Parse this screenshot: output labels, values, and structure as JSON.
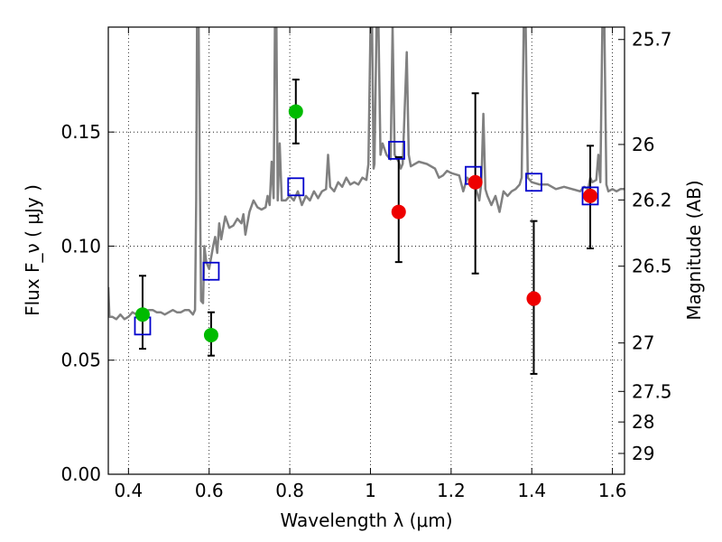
{
  "chart_data": {
    "type": "scatter",
    "xlabel": "Wavelength  λ (μm)",
    "ylabel": "Flux  F_ν  ( μJy )",
    "ylabel_right": "Magnitude (AB)",
    "xlim": [
      0.35,
      1.63
    ],
    "ylim": [
      0.0,
      0.196
    ],
    "grid": true,
    "x_ticks": [
      0.4,
      0.6,
      0.8,
      1.0,
      1.2,
      1.4,
      1.6
    ],
    "x_tick_labels": [
      "0.4",
      "0.6",
      "0.8",
      "1",
      "1.2",
      "1.4",
      "1.6"
    ],
    "y_ticks": [
      0.0,
      0.05,
      0.1,
      0.15
    ],
    "y_tick_labels": [
      "0.00",
      "0.05",
      "0.10",
      "0.15"
    ],
    "right_ticks": [
      {
        "label": "25.7",
        "mag": 25.7
      },
      {
        "label": "26",
        "mag": 26.0
      },
      {
        "label": "26.2",
        "mag": 26.2
      },
      {
        "label": "26.5",
        "mag": 26.5
      },
      {
        "label": "27",
        "mag": 27.0
      },
      {
        "label": "27.5",
        "mag": 27.5
      },
      {
        "label": "28",
        "mag": 28.0
      },
      {
        "label": "29",
        "mag": 29.0
      }
    ],
    "colors": {
      "spectrum": "#808080",
      "green": "#00bb00",
      "red": "#ee0000",
      "model_squares": "#0000cc",
      "errorbar": "#000000",
      "grid": "#000000"
    },
    "spectrum": [
      [
        0.35,
        0.082
      ],
      [
        0.353,
        0.069
      ],
      [
        0.36,
        0.069
      ],
      [
        0.37,
        0.068
      ],
      [
        0.38,
        0.07
      ],
      [
        0.39,
        0.068
      ],
      [
        0.4,
        0.069
      ],
      [
        0.41,
        0.071
      ],
      [
        0.42,
        0.07
      ],
      [
        0.43,
        0.072
      ],
      [
        0.44,
        0.071
      ],
      [
        0.45,
        0.072
      ],
      [
        0.46,
        0.072
      ],
      [
        0.47,
        0.071
      ],
      [
        0.48,
        0.071
      ],
      [
        0.49,
        0.07
      ],
      [
        0.5,
        0.071
      ],
      [
        0.51,
        0.072
      ],
      [
        0.52,
        0.071
      ],
      [
        0.53,
        0.071
      ],
      [
        0.54,
        0.072
      ],
      [
        0.55,
        0.072
      ],
      [
        0.56,
        0.07
      ],
      [
        0.565,
        0.072
      ],
      [
        0.568,
        0.12
      ],
      [
        0.57,
        0.196
      ],
      [
        0.574,
        0.196
      ],
      [
        0.577,
        0.13
      ],
      [
        0.58,
        0.076
      ],
      [
        0.585,
        0.075
      ],
      [
        0.588,
        0.1
      ],
      [
        0.593,
        0.093
      ],
      [
        0.6,
        0.09
      ],
      [
        0.61,
        0.1
      ],
      [
        0.615,
        0.104
      ],
      [
        0.62,
        0.097
      ],
      [
        0.625,
        0.11
      ],
      [
        0.63,
        0.103
      ],
      [
        0.64,
        0.113
      ],
      [
        0.65,
        0.108
      ],
      [
        0.66,
        0.109
      ],
      [
        0.67,
        0.112
      ],
      [
        0.68,
        0.11
      ],
      [
        0.685,
        0.114
      ],
      [
        0.69,
        0.105
      ],
      [
        0.7,
        0.115
      ],
      [
        0.71,
        0.12
      ],
      [
        0.72,
        0.117
      ],
      [
        0.73,
        0.116
      ],
      [
        0.74,
        0.117
      ],
      [
        0.745,
        0.122
      ],
      [
        0.75,
        0.118
      ],
      [
        0.755,
        0.137
      ],
      [
        0.76,
        0.121
      ],
      [
        0.763,
        0.196
      ],
      [
        0.767,
        0.196
      ],
      [
        0.77,
        0.12
      ],
      [
        0.775,
        0.145
      ],
      [
        0.78,
        0.12
      ],
      [
        0.79,
        0.12
      ],
      [
        0.8,
        0.122
      ],
      [
        0.81,
        0.12
      ],
      [
        0.82,
        0.124
      ],
      [
        0.83,
        0.118
      ],
      [
        0.84,
        0.122
      ],
      [
        0.85,
        0.12
      ],
      [
        0.86,
        0.124
      ],
      [
        0.87,
        0.121
      ],
      [
        0.88,
        0.124
      ],
      [
        0.89,
        0.125
      ],
      [
        0.895,
        0.14
      ],
      [
        0.9,
        0.126
      ],
      [
        0.91,
        0.124
      ],
      [
        0.92,
        0.128
      ],
      [
        0.93,
        0.126
      ],
      [
        0.94,
        0.13
      ],
      [
        0.95,
        0.127
      ],
      [
        0.96,
        0.128
      ],
      [
        0.97,
        0.127
      ],
      [
        0.98,
        0.13
      ],
      [
        0.99,
        0.129
      ],
      [
        0.995,
        0.136
      ],
      [
        1.0,
        0.196
      ],
      [
        1.004,
        0.196
      ],
      [
        1.008,
        0.134
      ],
      [
        1.01,
        0.136
      ],
      [
        1.015,
        0.196
      ],
      [
        1.02,
        0.196
      ],
      [
        1.025,
        0.14
      ],
      [
        1.03,
        0.145
      ],
      [
        1.04,
        0.14
      ],
      [
        1.05,
        0.138
      ],
      [
        1.055,
        0.196
      ],
      [
        1.06,
        0.14
      ],
      [
        1.07,
        0.137
      ],
      [
        1.075,
        0.134
      ],
      [
        1.08,
        0.136
      ],
      [
        1.09,
        0.185
      ],
      [
        1.095,
        0.14
      ],
      [
        1.1,
        0.135
      ],
      [
        1.12,
        0.137
      ],
      [
        1.14,
        0.136
      ],
      [
        1.16,
        0.134
      ],
      [
        1.17,
        0.13
      ],
      [
        1.18,
        0.131
      ],
      [
        1.19,
        0.133
      ],
      [
        1.2,
        0.132
      ],
      [
        1.22,
        0.131
      ],
      [
        1.23,
        0.124
      ],
      [
        1.24,
        0.13
      ],
      [
        1.25,
        0.128
      ],
      [
        1.26,
        0.126
      ],
      [
        1.27,
        0.12
      ],
      [
        1.275,
        0.128
      ],
      [
        1.28,
        0.158
      ],
      [
        1.285,
        0.125
      ],
      [
        1.29,
        0.122
      ],
      [
        1.3,
        0.118
      ],
      [
        1.31,
        0.122
      ],
      [
        1.32,
        0.115
      ],
      [
        1.33,
        0.124
      ],
      [
        1.34,
        0.122
      ],
      [
        1.35,
        0.124
      ],
      [
        1.36,
        0.125
      ],
      [
        1.37,
        0.127
      ],
      [
        1.375,
        0.13
      ],
      [
        1.38,
        0.196
      ],
      [
        1.385,
        0.196
      ],
      [
        1.39,
        0.13
      ],
      [
        1.4,
        0.128
      ],
      [
        1.42,
        0.127
      ],
      [
        1.44,
        0.127
      ],
      [
        1.46,
        0.125
      ],
      [
        1.48,
        0.126
      ],
      [
        1.5,
        0.125
      ],
      [
        1.52,
        0.124
      ],
      [
        1.53,
        0.126
      ],
      [
        1.54,
        0.125
      ],
      [
        1.545,
        0.13
      ],
      [
        1.55,
        0.128
      ],
      [
        1.56,
        0.129
      ],
      [
        1.565,
        0.14
      ],
      [
        1.57,
        0.128
      ],
      [
        1.575,
        0.196
      ],
      [
        1.58,
        0.196
      ],
      [
        1.585,
        0.127
      ],
      [
        1.59,
        0.124
      ],
      [
        1.6,
        0.125
      ],
      [
        1.61,
        0.124
      ],
      [
        1.62,
        0.125
      ],
      [
        1.63,
        0.125
      ]
    ],
    "model_points": [
      {
        "x": 0.435,
        "y": 0.065
      },
      {
        "x": 0.605,
        "y": 0.089
      },
      {
        "x": 0.815,
        "y": 0.126
      },
      {
        "x": 1.065,
        "y": 0.142
      },
      {
        "x": 1.255,
        "y": 0.131
      },
      {
        "x": 1.405,
        "y": 0.128
      },
      {
        "x": 1.545,
        "y": 0.122
      }
    ],
    "observed_green": [
      {
        "x": 0.435,
        "y": 0.07,
        "yerr_low": 0.055,
        "yerr_high": 0.087
      },
      {
        "x": 0.605,
        "y": 0.061,
        "yerr_low": 0.052,
        "yerr_high": 0.071
      },
      {
        "x": 0.815,
        "y": 0.159,
        "yerr_low": 0.145,
        "yerr_high": 0.173
      }
    ],
    "observed_red": [
      {
        "x": 1.07,
        "y": 0.115,
        "yerr_low": 0.093,
        "yerr_high": 0.139
      },
      {
        "x": 1.26,
        "y": 0.128,
        "yerr_low": 0.088,
        "yerr_high": 0.167
      },
      {
        "x": 1.405,
        "y": 0.077,
        "yerr_low": 0.044,
        "yerr_high": 0.111
      },
      {
        "x": 1.545,
        "y": 0.122,
        "yerr_low": 0.099,
        "yerr_high": 0.144
      }
    ]
  }
}
